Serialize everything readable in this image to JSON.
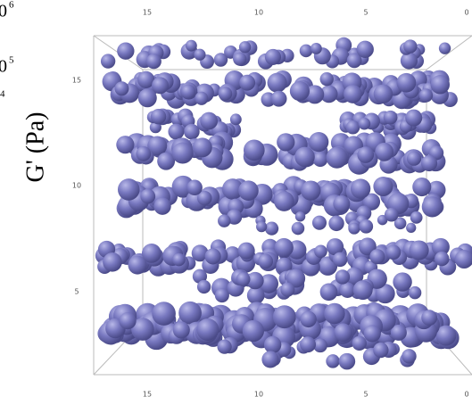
{
  "left_label": {
    "exponents": [
      "6",
      "5",
      "4"
    ],
    "base_fragment": "0",
    "axis_title": "G' (Pa)"
  },
  "top_axis": [
    "15",
    "10",
    "5",
    "0"
  ],
  "left_axis": [
    "15",
    "10",
    "5"
  ],
  "bottom_axis": [
    "15",
    "10",
    "5",
    "0"
  ]
}
